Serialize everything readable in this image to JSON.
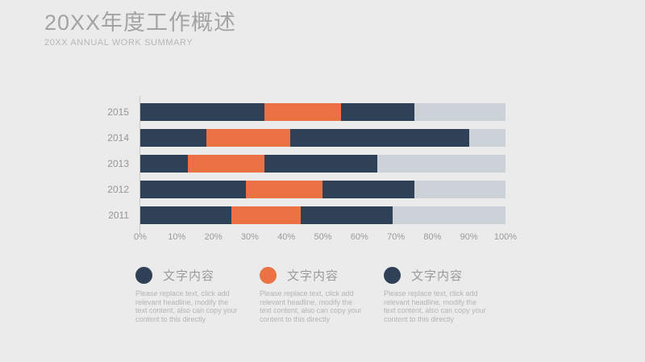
{
  "slide": {
    "title": "20XX年度工作概述",
    "subtitle": "20XX ANNUAL WORK SUMMARY"
  },
  "colors": {
    "background": "#ebebeb",
    "navy": "#2e4156",
    "orange": "#ec7143",
    "remainder_gray": "#cdd2d8",
    "axis_line": "#c9c9c9",
    "title_gray": "#a3a3a3",
    "label_gray": "#959595"
  },
  "chart_data": {
    "type": "bar",
    "orientation": "horizontal",
    "stacked": true,
    "categories": [
      "2015",
      "2014",
      "2013",
      "2012",
      "2011"
    ],
    "series": [
      {
        "name": "文字内容",
        "color": "#2e4156",
        "values": [
          34,
          18,
          13,
          29,
          25
        ]
      },
      {
        "name": "文字内容",
        "color": "#ec7143",
        "values": [
          21,
          23,
          21,
          21,
          19
        ]
      },
      {
        "name": "文字内容",
        "color": "#2e4156",
        "values": [
          20,
          49,
          31,
          25,
          25
        ]
      }
    ],
    "remainder_color": "#cdd2d8",
    "x_ticks": [
      "0%",
      "10%",
      "20%",
      "30%",
      "40%",
      "50%",
      "60%",
      "70%",
      "80%",
      "90%",
      "100%"
    ],
    "xlim": [
      0,
      100
    ],
    "grid": false,
    "legend_position": "bottom"
  },
  "legend": [
    {
      "label": "文字内容",
      "color": "#2e4156",
      "description": "Please replace text, click add relevant headline, modify the text content, also can copy your content to this directly"
    },
    {
      "label": "文字内容",
      "color": "#ec7143",
      "description": "Please replace text, click add relevant headline, modify the text content, also can copy your content to this directly"
    },
    {
      "label": "文字内容",
      "color": "#2e4156",
      "description": "Please replace text, click add relevant headline, modify the text content, also can copy your content to this directly"
    }
  ]
}
